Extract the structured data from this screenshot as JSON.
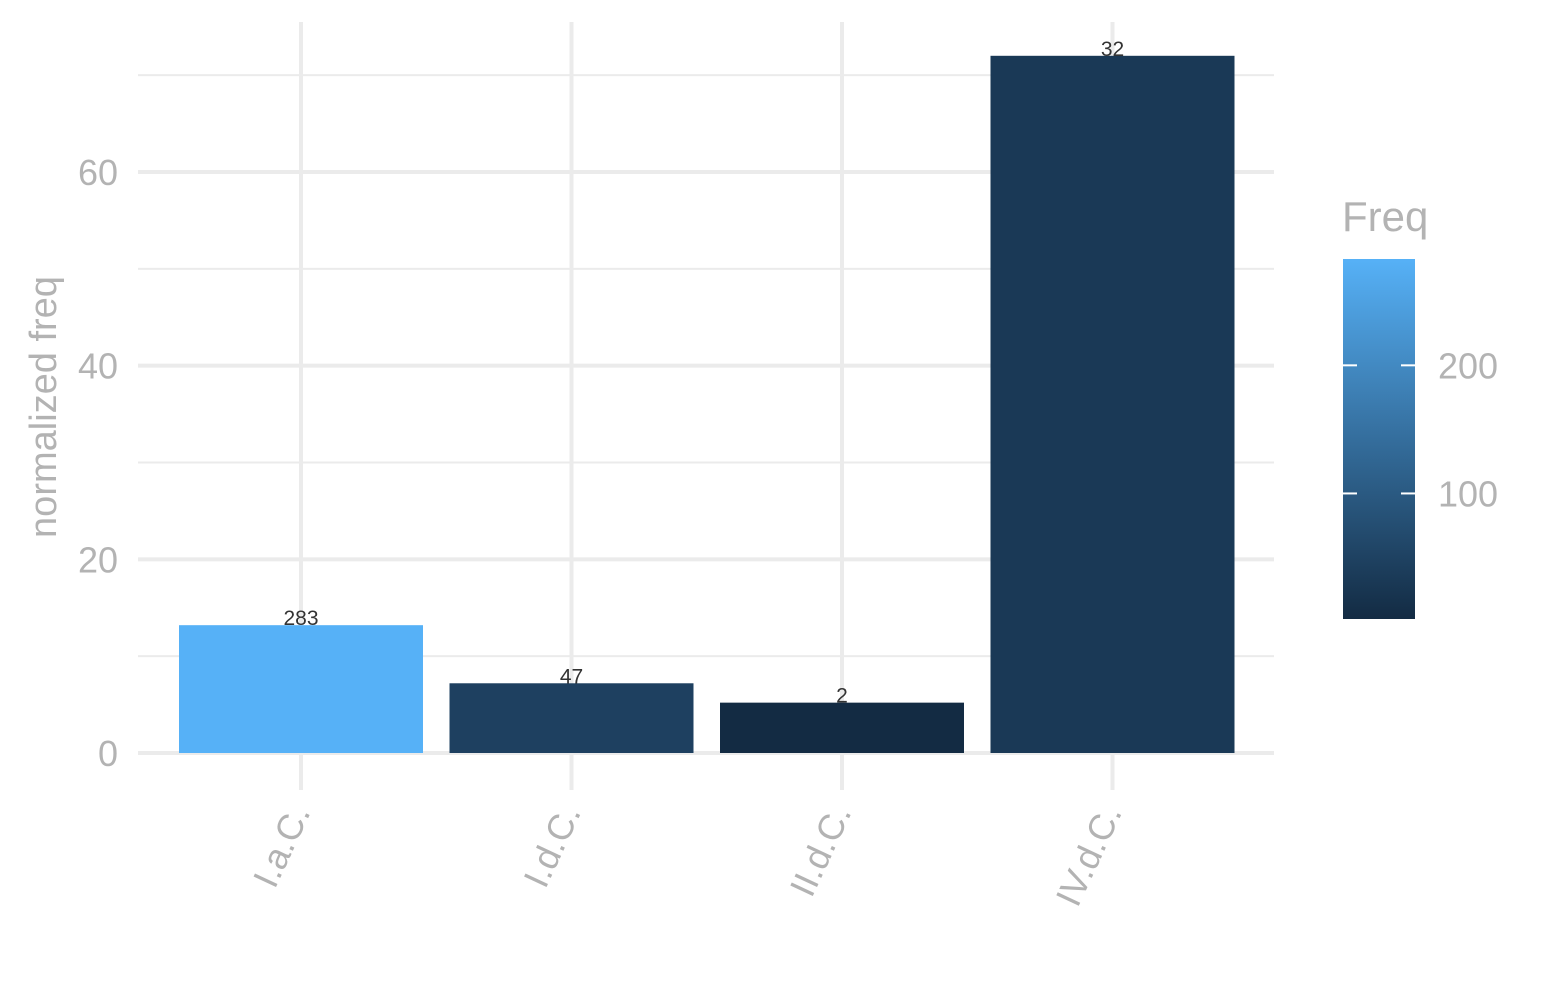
{
  "chart_data": {
    "type": "bar",
    "categories": [
      "I.a.C.",
      "I.d.C.",
      "II.d.C.",
      "IV.d.C."
    ],
    "values": [
      13.2,
      7.2,
      5.2,
      72.0
    ],
    "freq": [
      283,
      47,
      2,
      32
    ],
    "data_labels": [
      "283",
      "47",
      "2",
      "32"
    ],
    "title": "",
    "xlabel": "",
    "ylabel": "normalized freq",
    "ylim": [
      0,
      75
    ],
    "yticks": [
      0,
      20,
      40,
      60
    ],
    "y_minor_ticks": [
      10,
      30,
      50,
      70
    ],
    "grid": true,
    "legend": {
      "title": "Freq",
      "position": "right",
      "type": "colorbar",
      "range": [
        2,
        283
      ],
      "ticks": [
        100,
        200
      ],
      "tick_labels": [
        "100",
        "200"
      ],
      "low_color": "#132B43",
      "high_color": "#56B1F7"
    }
  }
}
